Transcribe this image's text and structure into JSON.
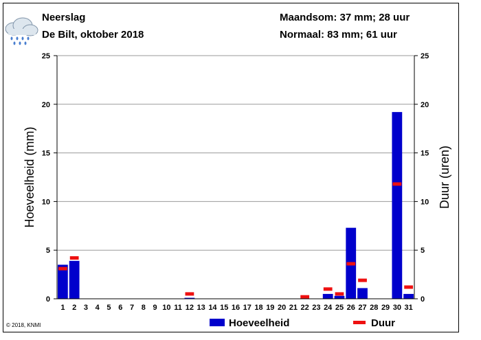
{
  "header": {
    "title": "Neerslag",
    "subtitle": "De Bilt, oktober 2018",
    "month_total": "Maandsom: 37 mm; 28 uur",
    "normal": "Normaal: 83 mm; 61 uur"
  },
  "copyright": "© 2018, KNMI",
  "icon": "rain-cloud-icon",
  "colors": {
    "bar": "#0000cc",
    "duration": "#ee1111",
    "grid": "#999999"
  },
  "chart_data": {
    "type": "bar",
    "title": "Neerslag",
    "ylabel": "Hoeveelheid (mm)",
    "y2label": "Duur (uren)",
    "xlabel": "",
    "ylim": [
      0,
      25
    ],
    "y2lim": [
      0,
      25
    ],
    "yticks": [
      0,
      5,
      10,
      15,
      20,
      25
    ],
    "categories": [
      "1",
      "2",
      "3",
      "4",
      "5",
      "6",
      "7",
      "8",
      "9",
      "10",
      "11",
      "12",
      "13",
      "14",
      "15",
      "16",
      "17",
      "18",
      "19",
      "20",
      "21",
      "22",
      "23",
      "24",
      "25",
      "26",
      "27",
      "28",
      "29",
      "30",
      "31"
    ],
    "series": [
      {
        "name": "Hoeveelheid",
        "kind": "bar",
        "values": [
          3.5,
          3.9,
          0,
          0,
          0,
          0,
          0,
          0,
          0,
          0,
          0,
          0.1,
          0,
          0,
          0,
          0,
          0,
          0,
          0,
          0,
          0,
          0,
          0,
          0.5,
          0.3,
          7.3,
          1.1,
          0,
          0,
          19.2,
          0.5
        ]
      },
      {
        "name": "Duur",
        "kind": "marker",
        "values": [
          3.1,
          4.2,
          0,
          0,
          0,
          0,
          0,
          0,
          0,
          0,
          0,
          0.5,
          0,
          0,
          0,
          0,
          0,
          0,
          0,
          0,
          0,
          0.2,
          0,
          1.0,
          0.5,
          3.6,
          1.9,
          0,
          0,
          11.8,
          1.2
        ]
      }
    ],
    "legend": [
      "Hoeveelheid",
      "Duur"
    ],
    "legend_position": "bottom"
  }
}
